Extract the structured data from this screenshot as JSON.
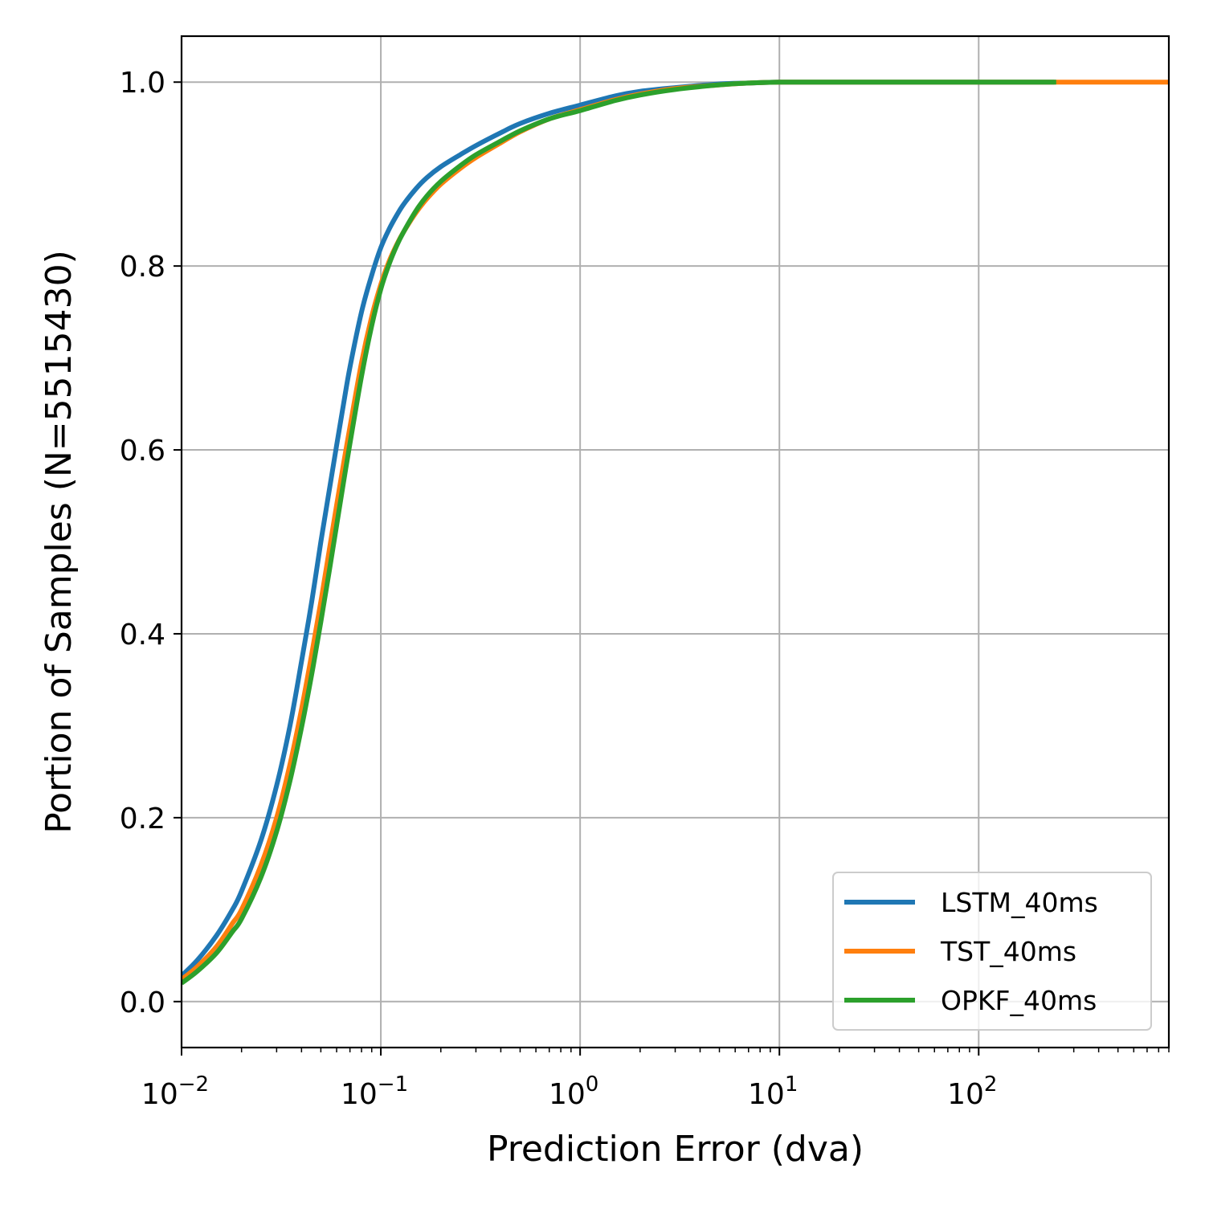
{
  "chart_data": {
    "type": "line",
    "title": "",
    "xlabel": "Prediction Error (dva)",
    "ylabel": "Portion of Samples (N=5515430)",
    "xscale": "log",
    "xlim": [
      0.01,
      900
    ],
    "ylim": [
      -0.05,
      1.05
    ],
    "grid": true,
    "legend_position": "lower-right",
    "x_ticks": [
      {
        "value": 0.01,
        "base": "10",
        "exp": "−2"
      },
      {
        "value": 0.1,
        "base": "10",
        "exp": "−1"
      },
      {
        "value": 1,
        "base": "10",
        "exp": "0"
      },
      {
        "value": 10,
        "base": "10",
        "exp": "1"
      },
      {
        "value": 100,
        "base": "10",
        "exp": "2"
      }
    ],
    "y_ticks": [
      {
        "value": 0.0,
        "label": "0.0"
      },
      {
        "value": 0.2,
        "label": "0.2"
      },
      {
        "value": 0.4,
        "label": "0.4"
      },
      {
        "value": 0.6,
        "label": "0.6"
      },
      {
        "value": 0.8,
        "label": "0.8"
      },
      {
        "value": 1.0,
        "label": "1.0"
      }
    ],
    "series": [
      {
        "name": "LSTM_40ms",
        "color": "#1f77b4",
        "x": [
          0.01,
          0.012,
          0.015,
          0.018,
          0.02,
          0.025,
          0.03,
          0.035,
          0.04,
          0.045,
          0.05,
          0.055,
          0.06,
          0.065,
          0.07,
          0.08,
          0.09,
          0.1,
          0.11,
          0.12,
          0.13,
          0.15,
          0.17,
          0.2,
          0.25,
          0.3,
          0.4,
          0.5,
          0.7,
          1,
          1.5,
          2,
          3,
          5,
          7,
          10,
          20,
          50,
          100,
          240
        ],
        "y": [
          0.028,
          0.045,
          0.072,
          0.1,
          0.12,
          0.175,
          0.235,
          0.3,
          0.37,
          0.435,
          0.5,
          0.555,
          0.605,
          0.65,
          0.69,
          0.75,
          0.79,
          0.82,
          0.84,
          0.855,
          0.867,
          0.884,
          0.896,
          0.908,
          0.921,
          0.931,
          0.945,
          0.955,
          0.966,
          0.975,
          0.985,
          0.99,
          0.994,
          0.998,
          0.999,
          1.0,
          1.0,
          1.0,
          1.0,
          1.0
        ]
      },
      {
        "name": "TST_40ms",
        "color": "#ff7f0e",
        "x": [
          0.01,
          0.012,
          0.015,
          0.018,
          0.02,
          0.025,
          0.03,
          0.035,
          0.04,
          0.045,
          0.05,
          0.055,
          0.06,
          0.065,
          0.07,
          0.08,
          0.09,
          0.1,
          0.11,
          0.12,
          0.13,
          0.15,
          0.17,
          0.2,
          0.25,
          0.3,
          0.4,
          0.5,
          0.7,
          1,
          1.5,
          2,
          3,
          5,
          7,
          10,
          20,
          50,
          100,
          250,
          900
        ],
        "y": [
          0.024,
          0.038,
          0.06,
          0.085,
          0.1,
          0.148,
          0.2,
          0.258,
          0.318,
          0.378,
          0.435,
          0.49,
          0.54,
          0.585,
          0.625,
          0.695,
          0.745,
          0.78,
          0.805,
          0.823,
          0.837,
          0.858,
          0.873,
          0.889,
          0.906,
          0.918,
          0.934,
          0.946,
          0.96,
          0.97,
          0.981,
          0.987,
          0.993,
          0.997,
          0.999,
          1.0,
          1.0,
          1.0,
          1.0,
          1.0,
          1.0
        ]
      },
      {
        "name": "OPKF_40ms",
        "color": "#2ca02c",
        "x": [
          0.01,
          0.012,
          0.015,
          0.018,
          0.02,
          0.025,
          0.03,
          0.035,
          0.04,
          0.045,
          0.05,
          0.055,
          0.06,
          0.065,
          0.07,
          0.08,
          0.09,
          0.1,
          0.11,
          0.12,
          0.13,
          0.15,
          0.17,
          0.2,
          0.25,
          0.3,
          0.4,
          0.5,
          0.7,
          1,
          1.5,
          2,
          3,
          5,
          7,
          10,
          20,
          50,
          100,
          245
        ],
        "y": [
          0.02,
          0.033,
          0.053,
          0.076,
          0.09,
          0.135,
          0.185,
          0.24,
          0.298,
          0.356,
          0.413,
          0.467,
          0.518,
          0.565,
          0.607,
          0.68,
          0.735,
          0.775,
          0.802,
          0.822,
          0.837,
          0.86,
          0.876,
          0.892,
          0.909,
          0.921,
          0.936,
          0.947,
          0.96,
          0.969,
          0.98,
          0.986,
          0.992,
          0.997,
          0.999,
          1.0,
          1.0,
          1.0,
          1.0,
          1.0
        ]
      }
    ]
  }
}
